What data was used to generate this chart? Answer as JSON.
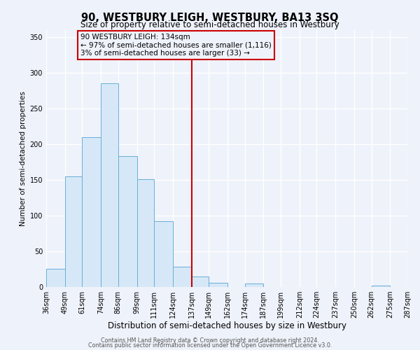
{
  "title": "90, WESTBURY LEIGH, WESTBURY, BA13 3SQ",
  "subtitle": "Size of property relative to semi-detached houses in Westbury",
  "xlabel": "Distribution of semi-detached houses by size in Westbury",
  "ylabel": "Number of semi-detached properties",
  "bin_edges": [
    36,
    49,
    61,
    74,
    86,
    99,
    111,
    124,
    137,
    149,
    162,
    174,
    187,
    199,
    212,
    224,
    237,
    250,
    262,
    275,
    287
  ],
  "bin_labels": [
    "36sqm",
    "49sqm",
    "61sqm",
    "74sqm",
    "86sqm",
    "99sqm",
    "111sqm",
    "124sqm",
    "137sqm",
    "149sqm",
    "162sqm",
    "174sqm",
    "187sqm",
    "199sqm",
    "212sqm",
    "224sqm",
    "237sqm",
    "250sqm",
    "262sqm",
    "275sqm",
    "287sqm"
  ],
  "counts": [
    25,
    155,
    210,
    285,
    183,
    151,
    92,
    28,
    15,
    6,
    0,
    5,
    0,
    0,
    0,
    0,
    0,
    0,
    2,
    0
  ],
  "bar_facecolor": "#d6e8f7",
  "bar_edgecolor": "#6aaed6",
  "vline_x": 137,
  "vline_color": "#cc0000",
  "annotation_line1": "90 WESTBURY LEIGH: 134sqm",
  "annotation_line2": "← 97% of semi-detached houses are smaller (1,116)",
  "annotation_line3": "3% of semi-detached houses are larger (33) →",
  "annotation_box_edgecolor": "#cc0000",
  "ylim": [
    0,
    360
  ],
  "yticks": [
    0,
    50,
    100,
    150,
    200,
    250,
    300,
    350
  ],
  "footer1": "Contains HM Land Registry data © Crown copyright and database right 2024.",
  "footer2": "Contains public sector information licensed under the Open Government Licence v3.0.",
  "bg_color": "#eef2fa",
  "grid_color": "#ffffff",
  "title_fontsize": 10.5,
  "subtitle_fontsize": 8.5,
  "xlabel_fontsize": 8.5,
  "ylabel_fontsize": 7.5,
  "tick_fontsize": 7,
  "annotation_fontsize": 7.5,
  "footer_fontsize": 5.8
}
